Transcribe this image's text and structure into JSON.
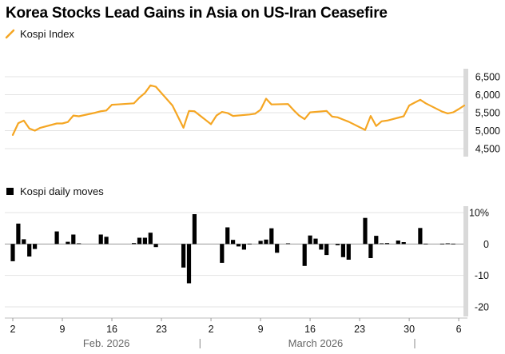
{
  "title": "Korea Stocks Lead Gains in Asia on US-Iran Ceasefire",
  "chart_data": [
    {
      "type": "line",
      "legend": "Kospi Index",
      "color": "#f5a623",
      "ylim": [
        4500,
        6500
      ],
      "yticks": [
        "6,500",
        "6,000",
        "5,500",
        "5,000",
        "4,500"
      ],
      "ytick_values": [
        6500,
        6000,
        5500,
        5000,
        4500
      ],
      "x": [
        0,
        1,
        2,
        3,
        4,
        5,
        8,
        9,
        10,
        11,
        12,
        15,
        16,
        17,
        18,
        19,
        22,
        23,
        24,
        25,
        26,
        29,
        31,
        32,
        33,
        36,
        37,
        38,
        39,
        40,
        43,
        44,
        45,
        46,
        47,
        50,
        51,
        52,
        53,
        54,
        57,
        58,
        59,
        60,
        61,
        64,
        65,
        66,
        67,
        68,
        71,
        72,
        73,
        74,
        75,
        78,
        79,
        80,
        81,
        82
      ],
      "values": [
        4880,
        5210,
        5280,
        5060,
        5000,
        5080,
        5200,
        5200,
        5240,
        5420,
        5400,
        5500,
        5540,
        5560,
        5720,
        5730,
        5760,
        5920,
        6050,
        6260,
        6220,
        5700,
        5080,
        5550,
        5540,
        5180,
        5420,
        5520,
        5490,
        5410,
        5450,
        5470,
        5580,
        5890,
        5730,
        5740,
        5570,
        5420,
        5320,
        5510,
        5550,
        5390,
        5370,
        5310,
        5250,
        5020,
        5410,
        5130,
        5260,
        5280,
        5400,
        5700,
        5780,
        5860,
        5760,
        5530,
        5480,
        5510,
        5600,
        5700
      ]
    },
    {
      "type": "bar",
      "legend": "Kospi daily moves",
      "color": "#000000",
      "ylim": [
        -20,
        10
      ],
      "yticks": [
        "10%",
        "0",
        "-10",
        "-20"
      ],
      "ytick_values": [
        10,
        0,
        -10,
        -20
      ],
      "x": [
        0,
        1,
        2,
        3,
        4,
        8,
        10,
        11,
        12,
        16,
        17,
        22,
        23,
        24,
        25,
        26,
        31,
        32,
        33,
        38,
        39,
        40,
        41,
        42,
        43,
        45,
        46,
        47,
        48,
        50,
        53,
        54,
        55,
        56,
        57,
        59,
        60,
        61,
        64,
        65,
        66,
        67,
        68,
        70,
        71,
        74,
        75,
        78,
        79,
        80
      ],
      "values": [
        -5.5,
        6.5,
        1.5,
        -4.0,
        -1.6,
        4.0,
        0.7,
        3.0,
        0.2,
        3.0,
        2.3,
        0.3,
        2.0,
        2.0,
        3.6,
        -1.0,
        -7.5,
        -12.5,
        9.5,
        -6.0,
        5.3,
        1.3,
        -0.8,
        -1.8,
        0.1,
        1.0,
        1.4,
        5.0,
        -2.8,
        0.2,
        -7.0,
        2.7,
        1.7,
        -1.8,
        -3.5,
        -0.4,
        -4.2,
        -5.0,
        8.3,
        -4.5,
        2.6,
        0.2,
        0.3,
        1.1,
        0.6,
        5.1,
        0.1,
        0.1,
        0.2,
        0.1
      ]
    }
  ],
  "x_axis": {
    "x_min": 0,
    "x_max": 82,
    "tick_labels": [
      "2",
      "9",
      "16",
      "23",
      "2",
      "9",
      "16",
      "23",
      "30",
      "6"
    ],
    "tick_x": [
      0,
      9,
      18,
      27,
      36,
      45,
      54,
      63,
      72,
      81
    ],
    "months": [
      "Feb. 2026",
      "March 2026"
    ],
    "month_label_x": [
      17,
      55
    ],
    "month_separator_x": [
      34,
      73
    ]
  }
}
